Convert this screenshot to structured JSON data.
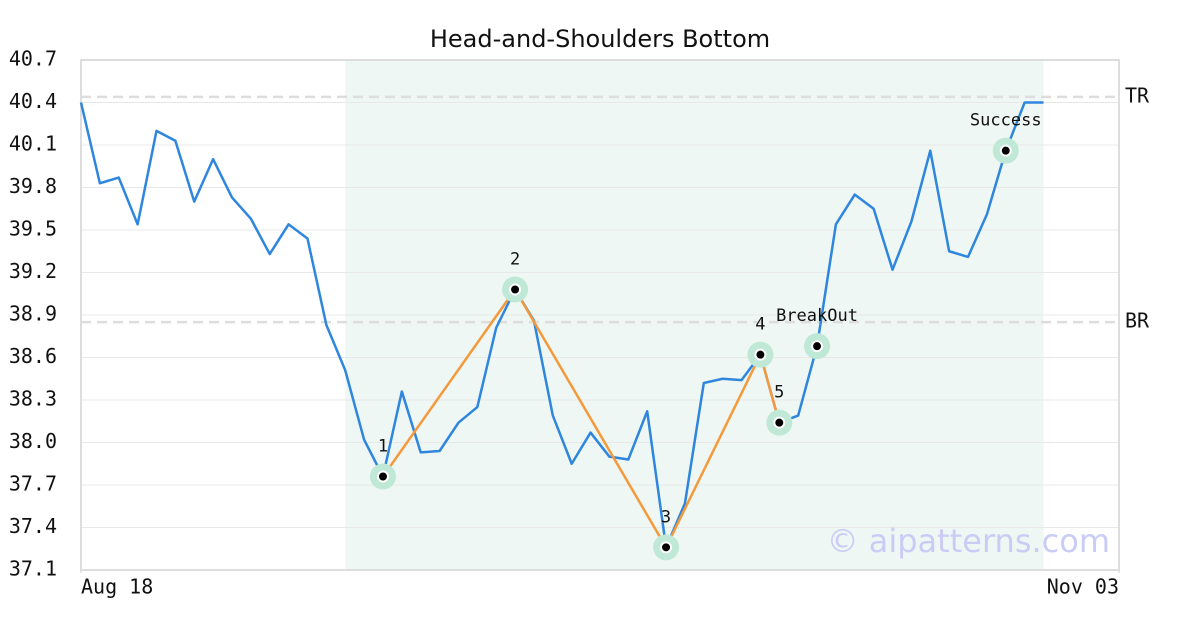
{
  "chart_data": {
    "type": "line",
    "title": "Head-and-Shoulders Bottom",
    "color": "#2e86de",
    "values": [
      40.4,
      39.83,
      39.87,
      39.54,
      40.2,
      40.13,
      39.7,
      40.0,
      39.73,
      39.58,
      39.33,
      39.54,
      39.44,
      38.83,
      38.51,
      38.02,
      37.76,
      38.36,
      37.93,
      37.94,
      38.14,
      38.25,
      38.81,
      39.08,
      38.86,
      38.19,
      37.85,
      38.07,
      37.9,
      37.88,
      38.22,
      37.26,
      37.57,
      38.42,
      38.45,
      38.44,
      38.62,
      38.14,
      38.19,
      38.68,
      39.54,
      39.75,
      39.65,
      39.22,
      39.56,
      40.06,
      39.35,
      39.31,
      39.61,
      40.06,
      40.4,
      40.4
    ],
    "xlim": [
      0,
      55
    ],
    "xticks": [
      {
        "value": 0,
        "label": "Aug 18"
      },
      {
        "value": 55,
        "label": "Nov 03"
      }
    ],
    "ylim": [
      37.1,
      40.7
    ],
    "yticks": [
      37.1,
      37.4,
      37.7,
      {
        "value": 38,
        "label": "38.0"
      },
      38.3,
      38.6,
      38.9,
      39.2,
      39.5,
      39.8,
      40.1,
      40.4,
      40.7
    ],
    "grid": true,
    "reference_lines": [
      {
        "label": "TR",
        "value": 40.44
      },
      {
        "label": "BR",
        "value": 38.85
      }
    ],
    "highlight": {
      "start": 14,
      "end": 51,
      "color": "#eef7f3"
    },
    "pattern_color": "#f59a3c",
    "pattern_points": [
      {
        "label": "1",
        "x": 16,
        "value": 37.76
      },
      {
        "label": "2",
        "x": 23,
        "value": 39.08
      },
      {
        "label": "3",
        "x": 31,
        "value": 37.26
      },
      {
        "label": "4",
        "x": 36,
        "value": 38.62
      },
      {
        "label": "5",
        "x": 37,
        "value": 38.14
      }
    ],
    "signal_points": [
      {
        "label": "BreakOut",
        "x": 39,
        "value": 38.68
      },
      {
        "label": "Success",
        "x": 49,
        "value": 40.06
      }
    ],
    "watermark": "© aipatterns.com"
  }
}
